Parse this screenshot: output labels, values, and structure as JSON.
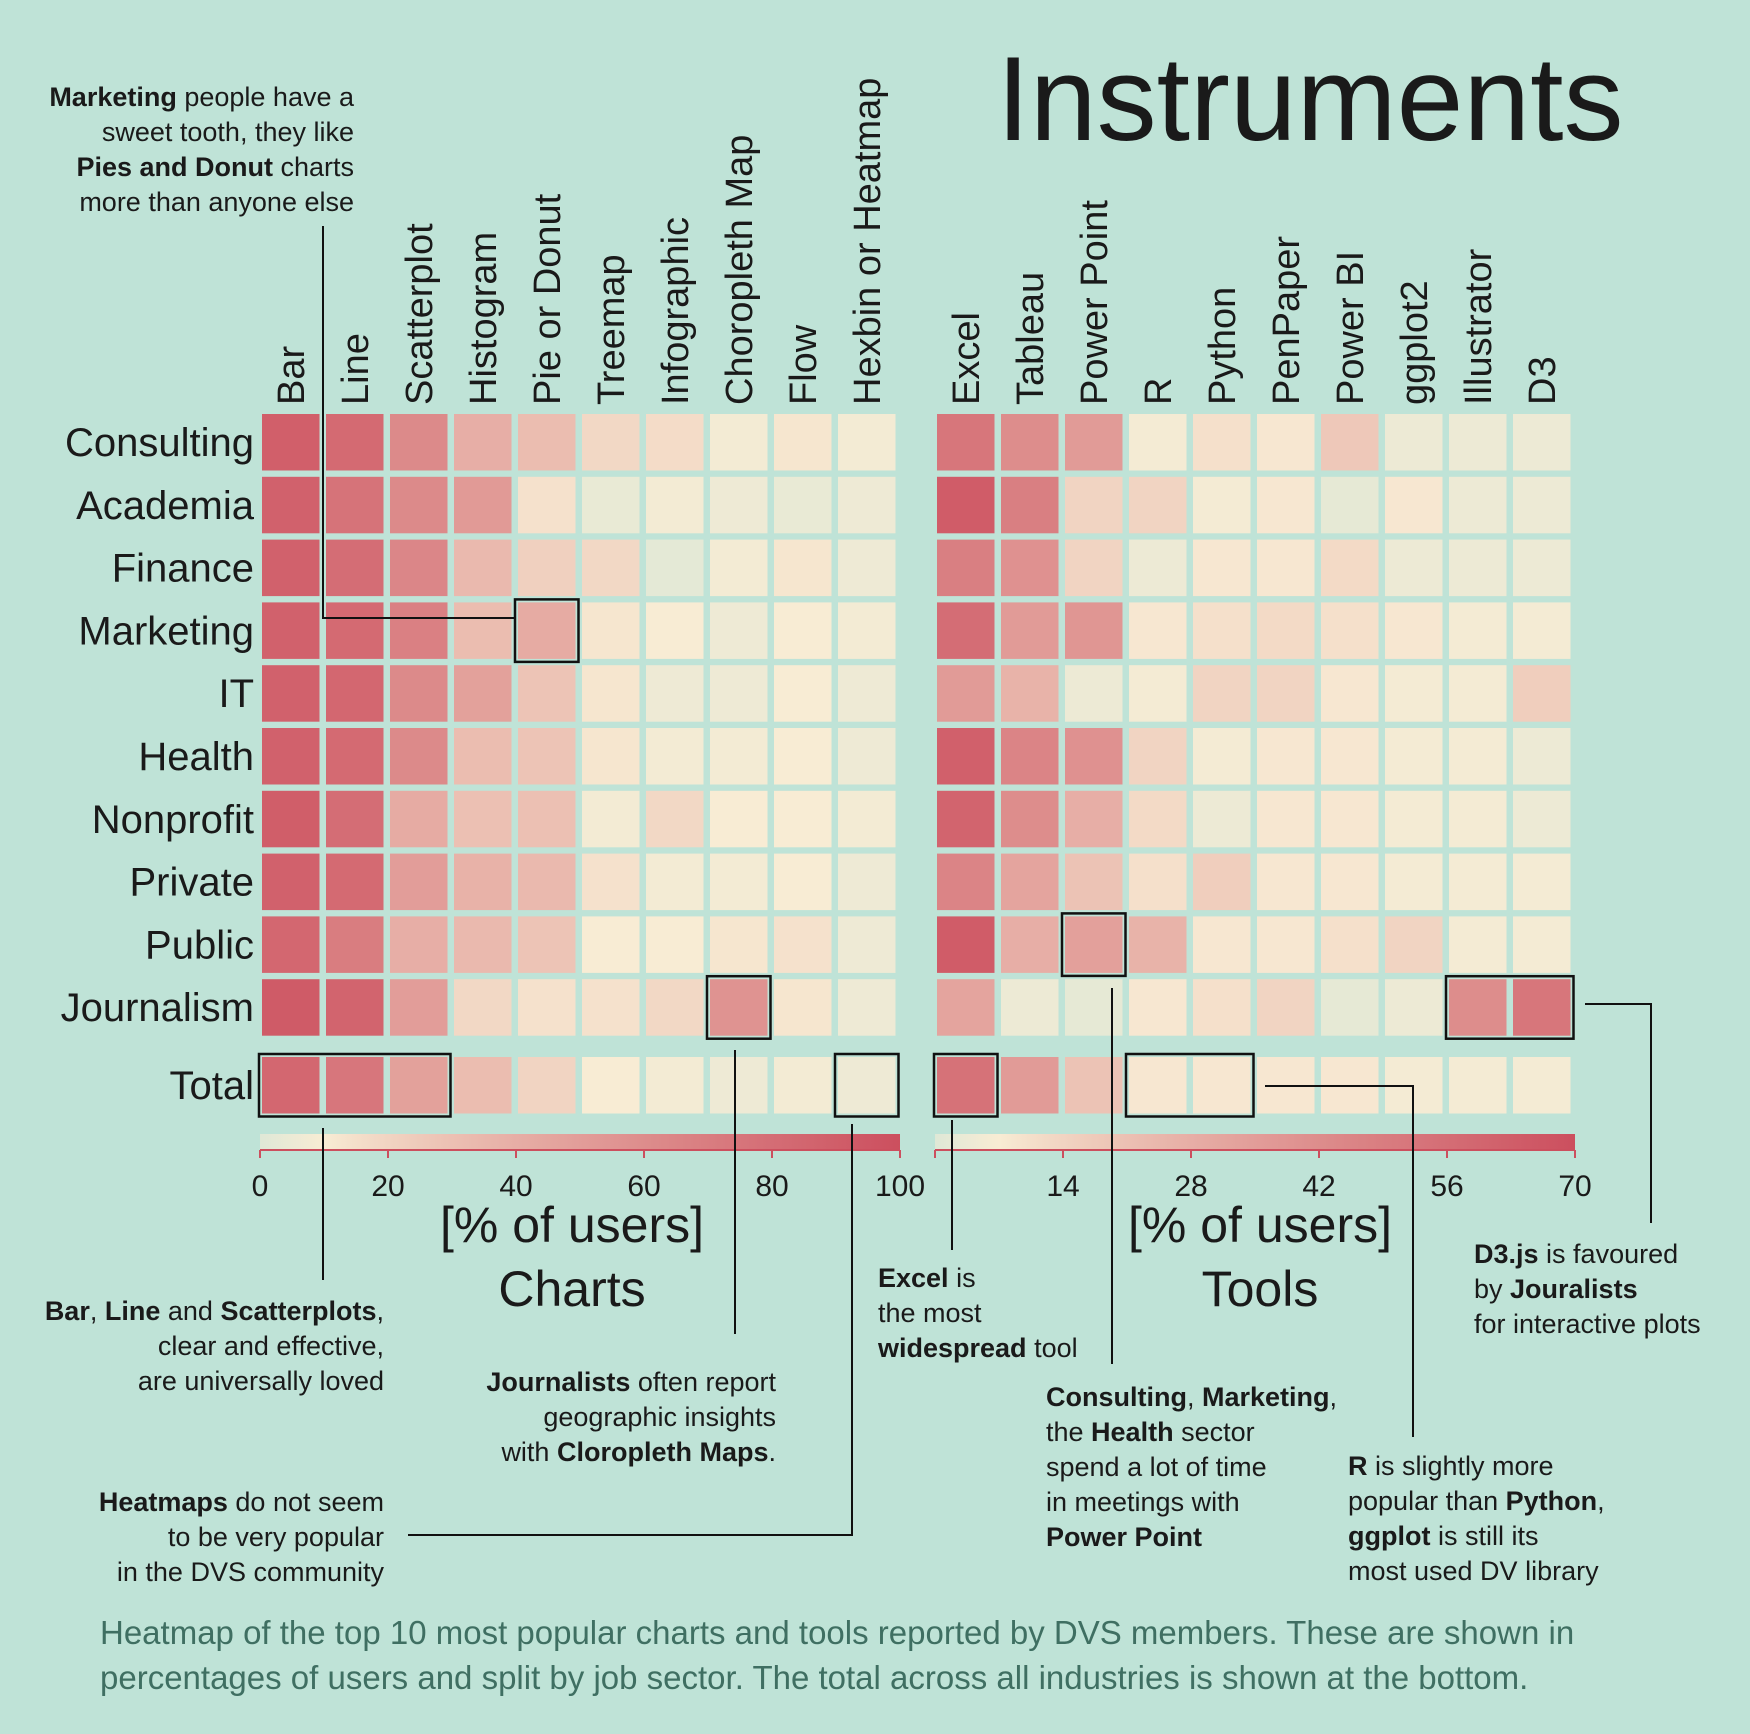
{
  "colors": {
    "background": "#bfe3d7",
    "scale_low": "#dfe8d6",
    "scale_mid": "#f8ecd4",
    "scale_high": "#cc4f5e",
    "text": "#1a1a1a",
    "caption": "#3f6f62",
    "box": "#111111"
  },
  "chart_data": {
    "type": "heatmap",
    "title": "Instruments",
    "caption_lines": [
      "Heatmap of the top 10 most popular charts and tools reported by DVS members. These are shown in",
      "percentages of users and split by job sector. The total across all industries is shown at the bottom."
    ],
    "sectors": [
      "Consulting",
      "Academia",
      "Finance",
      "Marketing",
      "IT",
      "Health",
      "Nonprofit",
      "Private",
      "Public",
      "Journalism"
    ],
    "total_label": "Total",
    "charts": {
      "label_line1": "[% of users]",
      "label_line2": "Charts",
      "range": [
        0,
        100
      ],
      "ticks": [
        "0",
        "20",
        "40",
        "60",
        "80",
        "100"
      ],
      "columns": [
        "Bar",
        "Line",
        "Scatterplot",
        "Histogram",
        "Pie or Donut",
        "Treemap",
        "Infographic",
        "Choropleth Map",
        "Flow",
        "Hexbin or Heatmap"
      ],
      "values": [
        [
          89,
          82,
          62,
          40,
          32,
          18,
          16,
          8,
          12,
          8
        ],
        [
          88,
          76,
          62,
          52,
          14,
          4,
          8,
          6,
          4,
          6
        ],
        [
          88,
          80,
          64,
          34,
          22,
          18,
          2,
          8,
          12,
          6
        ],
        [
          88,
          82,
          68,
          32,
          42,
          12,
          10,
          6,
          10,
          8
        ],
        [
          88,
          84,
          62,
          48,
          28,
          12,
          6,
          6,
          10,
          6
        ],
        [
          88,
          82,
          62,
          32,
          28,
          12,
          8,
          8,
          10,
          6
        ],
        [
          90,
          80,
          42,
          30,
          30,
          8,
          18,
          10,
          10,
          8
        ],
        [
          88,
          82,
          50,
          38,
          34,
          14,
          8,
          8,
          10,
          6
        ],
        [
          84,
          70,
          40,
          34,
          28,
          10,
          10,
          12,
          14,
          6
        ],
        [
          92,
          86,
          50,
          18,
          14,
          14,
          18,
          56,
          12,
          6
        ]
      ],
      "totals": [
        84,
        74,
        48,
        32,
        20,
        10,
        8,
        6,
        8,
        6
      ]
    },
    "tools": {
      "label_line1": "[% of users]",
      "label_line2": "Tools",
      "range": [
        0,
        70
      ],
      "ticks": [
        "14",
        "28",
        "42",
        "56",
        "70"
      ],
      "columns": [
        "Excel",
        "Tableau",
        "Power Point",
        "R",
        "Python",
        "PenPaper",
        "Power BI",
        "ggplot2",
        "Illustrator",
        "D3"
      ],
      "values": [
        [
          52,
          42,
          36,
          6,
          10,
          8,
          18,
          4,
          4,
          4
        ],
        [
          64,
          48,
          14,
          14,
          6,
          8,
          2,
          8,
          4,
          4
        ],
        [
          48,
          40,
          14,
          4,
          8,
          8,
          12,
          4,
          4,
          4
        ],
        [
          56,
          36,
          38,
          8,
          10,
          12,
          10,
          8,
          6,
          6
        ],
        [
          36,
          26,
          4,
          6,
          14,
          14,
          8,
          6,
          6,
          16
        ],
        [
          62,
          46,
          40,
          14,
          6,
          8,
          8,
          6,
          6,
          4
        ],
        [
          60,
          42,
          28,
          12,
          4,
          8,
          8,
          6,
          6,
          4
        ],
        [
          46,
          32,
          20,
          10,
          16,
          8,
          8,
          6,
          6,
          6
        ],
        [
          64,
          28,
          34,
          26,
          8,
          8,
          10,
          14,
          6,
          6
        ],
        [
          32,
          4,
          2,
          8,
          10,
          14,
          2,
          4,
          42,
          52
        ]
      ],
      "totals": [
        54,
        36,
        20,
        8,
        8,
        8,
        8,
        6,
        6,
        6
      ]
    },
    "annotations": {
      "marketing": [
        "<b>Marketing</b> people have a",
        "sweet tooth, they like",
        "<b>Pies and Donut</b> charts",
        "more than anyone else"
      ],
      "bar": [
        "<b>Bar</b>, <b>Line</b> and <b>Scatterplots</b>,",
        "clear and effective,",
        "are universally loved"
      ],
      "journalists": [
        "<b>Journalists</b> often report",
        "geographic insights",
        "with <b>Cloropleth Maps</b>."
      ],
      "heatmaps": [
        "<b>Heatmaps</b> do not seem",
        "to be very popular",
        "in the DVS community"
      ],
      "excel": [
        "<b>Excel</b> is",
        "the most",
        "<b>widespread</b> tool"
      ],
      "powerpoint": [
        "<b>Consulting</b>, <b>Marketing</b>,",
        "the <b>Health</b> sector",
        "spend a lot of time",
        "in meetings with",
        "<b>Power Point</b>"
      ],
      "r": [
        "<b>R</b> is slightly more",
        "popular than <b>Python</b>,",
        "<b>ggplot</b> is still its",
        "most used DV library"
      ],
      "d3": [
        "<b>D3.js</b> is favoured",
        "by <b>Jouralists</b>",
        "for interactive plots"
      ]
    }
  }
}
